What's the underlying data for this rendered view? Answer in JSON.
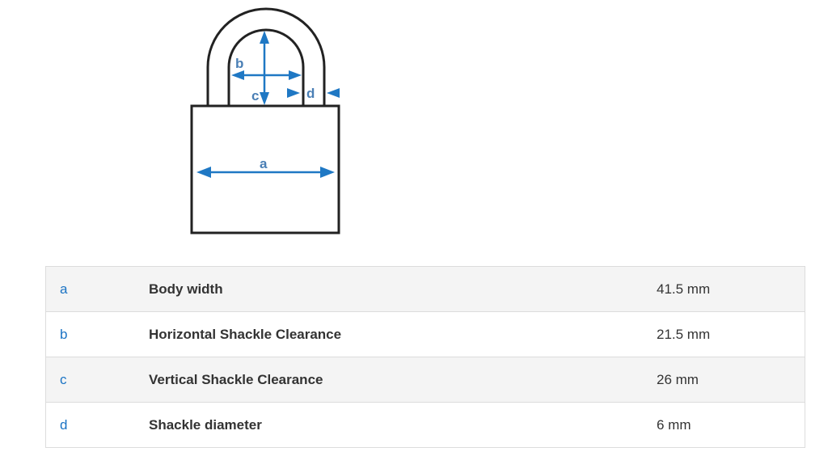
{
  "diagram": {
    "labels": {
      "a": "a",
      "b": "b",
      "c": "c",
      "d": "d"
    },
    "accent_color": "#1f78c4"
  },
  "specs": [
    {
      "key": "a",
      "label": "Body width",
      "value": "41.5 mm"
    },
    {
      "key": "b",
      "label": "Horizontal Shackle Clearance",
      "value": "21.5 mm"
    },
    {
      "key": "c",
      "label": "Vertical Shackle Clearance",
      "value": "26 mm"
    },
    {
      "key": "d",
      "label": "Shackle diameter",
      "value": "6 mm"
    }
  ]
}
